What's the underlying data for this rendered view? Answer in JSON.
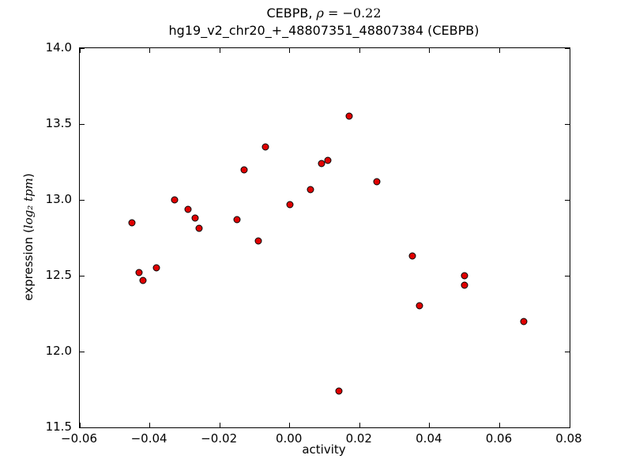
{
  "header": {
    "title_prefix": "CEBPB, ",
    "title_rho": "ρ",
    "title_rest": " = −0.22",
    "subtitle": "hg19_v2_chr20_+_48807351_48807384 (CEBPB)"
  },
  "axes": {
    "ylabel_prefix": "expression (",
    "ylabel_math": "log₂ tpm",
    "ylabel_suffix": ")"
  },
  "chart_data": {
    "type": "scatter",
    "title": "CEBPB, ρ = −0.22",
    "subtitle": "hg19_v2_chr20_+_48807351_48807384 (CEBPB)",
    "xlabel": "activity",
    "ylabel": "expression (log₂ tpm)",
    "xlim": [
      -0.06,
      0.08
    ],
    "ylim": [
      11.5,
      14.0
    ],
    "xticks": [
      -0.06,
      -0.04,
      -0.02,
      0.0,
      0.02,
      0.04,
      0.06,
      0.08
    ],
    "xtick_labels": [
      "−0.06",
      "−0.04",
      "−0.02",
      "0.00",
      "0.02",
      "0.04",
      "0.06",
      "0.08"
    ],
    "yticks": [
      11.5,
      12.0,
      12.5,
      13.0,
      13.5,
      14.0
    ],
    "ytick_labels": [
      "11.5",
      "12.0",
      "12.5",
      "13.0",
      "13.5",
      "14.0"
    ],
    "grid": false,
    "legend": "none",
    "marker": "circle",
    "marker_color": "#e00000",
    "marker_edge_color": "#000000",
    "points": [
      [
        -0.045,
        12.85
      ],
      [
        -0.043,
        12.52
      ],
      [
        -0.042,
        12.47
      ],
      [
        -0.038,
        12.55
      ],
      [
        -0.033,
        13.0
      ],
      [
        -0.029,
        12.94
      ],
      [
        -0.027,
        12.88
      ],
      [
        -0.026,
        12.81
      ],
      [
        -0.015,
        12.87
      ],
      [
        -0.013,
        13.2
      ],
      [
        -0.009,
        12.73
      ],
      [
        -0.007,
        13.35
      ],
      [
        0.0,
        12.97
      ],
      [
        0.006,
        13.07
      ],
      [
        0.009,
        13.24
      ],
      [
        0.011,
        13.26
      ],
      [
        0.014,
        11.74
      ],
      [
        0.017,
        13.55
      ],
      [
        0.025,
        13.12
      ],
      [
        0.035,
        12.63
      ],
      [
        0.037,
        12.3
      ],
      [
        0.05,
        12.5
      ],
      [
        0.05,
        12.44
      ],
      [
        0.067,
        12.2
      ]
    ]
  }
}
